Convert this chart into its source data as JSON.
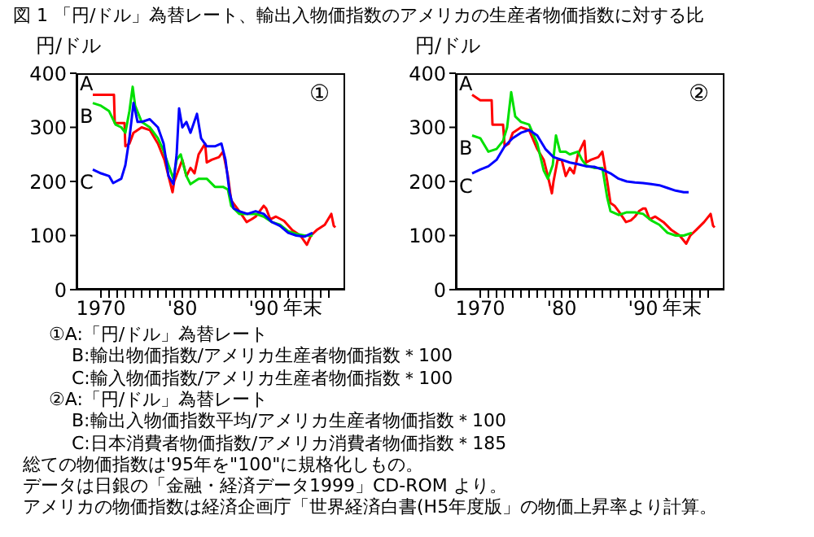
{
  "chart_data": [
    {
      "type": "line",
      "title": "図 1 「円/ドル」為替レート、輸出入物価指数のアメリカの生産者物価指数に対する比",
      "ylabel": "円/ドル",
      "xlabel": "年末",
      "marker": "none",
      "line_style": "solid",
      "xlim": [
        1967,
        2000
      ],
      "ylim": [
        0,
        400
      ],
      "yticks": [
        0,
        100,
        200,
        300,
        400
      ],
      "xticks": [
        {
          "value": 1970,
          "label": "1970"
        },
        {
          "value": 1971,
          "label": null
        },
        {
          "value": 1972,
          "label": null
        },
        {
          "value": 1973,
          "label": null
        },
        {
          "value": 1974,
          "label": null
        },
        {
          "value": 1975,
          "label": null
        },
        {
          "value": 1976,
          "label": null
        },
        {
          "value": 1977,
          "label": null
        },
        {
          "value": 1978,
          "label": null
        },
        {
          "value": 1979,
          "label": null
        },
        {
          "value": 1980,
          "label": "'80"
        },
        {
          "value": 1981,
          "label": null
        },
        {
          "value": 1982,
          "label": null
        },
        {
          "value": 1983,
          "label": null
        },
        {
          "value": 1984,
          "label": null
        },
        {
          "value": 1985,
          "label": null
        },
        {
          "value": 1986,
          "label": null
        },
        {
          "value": 1987,
          "label": null
        },
        {
          "value": 1988,
          "label": null
        },
        {
          "value": 1989,
          "label": null
        },
        {
          "value": 1990,
          "label": "'90"
        },
        {
          "value": 1991,
          "label": null
        },
        {
          "value": 1992,
          "label": null
        },
        {
          "value": 1993,
          "label": null
        },
        {
          "value": 1994,
          "label": null
        },
        {
          "value": 1995,
          "label": null
        },
        {
          "value": 1996,
          "label": null
        },
        {
          "value": 1997,
          "label": null
        },
        {
          "value": 1998,
          "label": null
        }
      ],
      "annotations": [
        "①",
        "①A:「円/ドル」為替レート",
        "B:輸出物価指数/アメリカ生産者物価指数＊100",
        "C:輸入物価指数/アメリカ生産者物価指数＊100"
      ],
      "series": [
        {
          "name": "A",
          "color": "#ff0000",
          "x": [
            1969,
            1971.6,
            1971.7,
            1972.9,
            1973.0,
            1973.5,
            1974.0,
            1975.0,
            1976.0,
            1977.0,
            1977.8,
            1978.3,
            1978.8,
            1979.0,
            1979.5,
            1980.0,
            1980.5,
            1981.0,
            1981.5,
            1982.0,
            1982.8,
            1983.0,
            1983.6,
            1984.5,
            1985.0,
            1985.6,
            1986.0,
            1986.5,
            1987.0,
            1987.9,
            1988.5,
            1989.0,
            1989.5,
            1990.0,
            1990.3,
            1990.8,
            1991.5,
            1992.5,
            1993.5,
            1994.5,
            1995.3,
            1995.8,
            1996.5,
            1997.5,
            1998.3,
            1998.6,
            1998.8
          ],
          "values": [
            360,
            360,
            308,
            308,
            265,
            270,
            290,
            300,
            295,
            270,
            240,
            210,
            180,
            200,
            220,
            240,
            210,
            225,
            215,
            250,
            270,
            235,
            240,
            245,
            255,
            210,
            165,
            155,
            145,
            125,
            130,
            135,
            145,
            155,
            150,
            130,
            135,
            127,
            110,
            100,
            83,
            100,
            110,
            120,
            140,
            118,
            115
          ]
        },
        {
          "name": "B",
          "color": "#00e000",
          "x": [
            1969,
            1970,
            1971,
            1971.8,
            1972.5,
            1973.0,
            1973.5,
            1973.9,
            1974.2,
            1975.0,
            1976.0,
            1977.0,
            1977.6,
            1978.3,
            1978.9,
            1979.3,
            1979.8,
            1980.5,
            1981.0,
            1982.0,
            1983.0,
            1984.0,
            1985.0,
            1985.6,
            1986.0,
            1987.0,
            1988.0,
            1989.0,
            1990.0,
            1991.0,
            1992.0,
            1993.0,
            1994.0,
            1995.0,
            1996.0
          ],
          "values": [
            345,
            340,
            330,
            305,
            300,
            290,
            330,
            375,
            340,
            310,
            300,
            280,
            260,
            230,
            205,
            240,
            250,
            210,
            195,
            205,
            205,
            190,
            190,
            185,
            155,
            140,
            140,
            140,
            135,
            125,
            120,
            108,
            103,
            100,
            100
          ]
        },
        {
          "name": "C",
          "color": "#0000ff",
          "x": [
            1969,
            1970,
            1971,
            1971.5,
            1972.5,
            1973.0,
            1973.5,
            1974.0,
            1974.5,
            1975.0,
            1976.0,
            1977.0,
            1977.7,
            1978.3,
            1978.9,
            1979.3,
            1979.6,
            1980.0,
            1980.5,
            1981.0,
            1981.8,
            1982.3,
            1983.0,
            1984.0,
            1984.8,
            1985.3,
            1985.8,
            1986.3,
            1987.0,
            1988.0,
            1989.0,
            1990.0,
            1991.0,
            1992.0,
            1993.0,
            1994.0,
            1995.0,
            1996.0
          ],
          "values": [
            222,
            215,
            210,
            197,
            205,
            230,
            280,
            345,
            310,
            310,
            315,
            300,
            270,
            210,
            195,
            250,
            335,
            300,
            310,
            290,
            325,
            280,
            265,
            265,
            270,
            240,
            180,
            150,
            145,
            140,
            145,
            140,
            125,
            118,
            105,
            100,
            98,
            105
          ]
        }
      ]
    },
    {
      "type": "line",
      "ylabel": "円/ドル",
      "xlabel": "年末",
      "marker": "none",
      "line_style": "solid",
      "xlim": [
        1967,
        2000
      ],
      "ylim": [
        0,
        400
      ],
      "yticks": [
        0,
        100,
        200,
        300,
        400
      ],
      "xticks": [
        {
          "value": 1970,
          "label": "1970"
        },
        {
          "value": 1971,
          "label": null
        },
        {
          "value": 1972,
          "label": null
        },
        {
          "value": 1973,
          "label": null
        },
        {
          "value": 1974,
          "label": null
        },
        {
          "value": 1975,
          "label": null
        },
        {
          "value": 1976,
          "label": null
        },
        {
          "value": 1977,
          "label": null
        },
        {
          "value": 1978,
          "label": null
        },
        {
          "value": 1979,
          "label": null
        },
        {
          "value": 1980,
          "label": "'80"
        },
        {
          "value": 1981,
          "label": null
        },
        {
          "value": 1982,
          "label": null
        },
        {
          "value": 1983,
          "label": null
        },
        {
          "value": 1984,
          "label": null
        },
        {
          "value": 1985,
          "label": null
        },
        {
          "value": 1986,
          "label": null
        },
        {
          "value": 1987,
          "label": null
        },
        {
          "value": 1988,
          "label": null
        },
        {
          "value": 1989,
          "label": null
        },
        {
          "value": 1990,
          "label": "'90"
        },
        {
          "value": 1991,
          "label": null
        },
        {
          "value": 1992,
          "label": null
        },
        {
          "value": 1993,
          "label": null
        },
        {
          "value": 1994,
          "label": null
        },
        {
          "value": 1995,
          "label": null
        },
        {
          "value": 1996,
          "label": null
        },
        {
          "value": 1997,
          "label": null
        },
        {
          "value": 1998,
          "label": null
        }
      ],
      "annotations": [
        "②",
        "②A:「円/ドル」為替レート",
        "B:輸出入物価指数平均/アメリカ生産者物価指数＊100",
        "C:日本消費者物価指数/アメリカ消費者物価指数＊185",
        "総ての物価指数は'95年を\"100\"に規格化しもの。",
        "データは日銀の「金融・経済データ1999」CD-ROM より。",
        "アメリカの物価指数は経済企画庁「世界経済白書(H5年度版」の物価上昇率より計算。"
      ],
      "series": [
        {
          "name": "A",
          "color": "#ff0000",
          "x": [
            1969,
            1970,
            1971.4,
            1971.5,
            1972.8,
            1973.0,
            1973.5,
            1974.0,
            1975.0,
            1976.0,
            1977.0,
            1977.8,
            1978.3,
            1978.8,
            1979.0,
            1979.5,
            1980.0,
            1980.5,
            1981.0,
            1981.5,
            1982.0,
            1982.8,
            1983.0,
            1983.6,
            1984.5,
            1985.0,
            1985.6,
            1986.0,
            1986.5,
            1987.0,
            1987.9,
            1988.5,
            1989.0,
            1989.5,
            1990.0,
            1990.3,
            1990.8,
            1991.5,
            1992.5,
            1993.5,
            1994.5,
            1995.3,
            1995.8,
            1996.5,
            1997.5,
            1998.3,
            1998.6,
            1998.8
          ],
          "values": [
            360,
            350,
            350,
            305,
            305,
            265,
            270,
            290,
            300,
            295,
            260,
            240,
            210,
            178,
            200,
            240,
            240,
            210,
            225,
            215,
            250,
            275,
            235,
            240,
            245,
            255,
            200,
            160,
            155,
            145,
            125,
            128,
            135,
            145,
            150,
            150,
            130,
            135,
            125,
            110,
            100,
            85,
            100,
            110,
            125,
            140,
            118,
            115
          ]
        },
        {
          "name": "B",
          "color": "#00e000",
          "x": [
            1969,
            1970,
            1971,
            1972,
            1972.8,
            1973.3,
            1973.8,
            1974.3,
            1975.0,
            1976.0,
            1977.0,
            1977.8,
            1978.3,
            1978.9,
            1979.3,
            1979.8,
            1980.5,
            1981.0,
            1982.0,
            1982.5,
            1983.0,
            1984.0,
            1985.0,
            1985.6,
            1986.0,
            1987.0,
            1988.0,
            1989.0,
            1990.0,
            1991.0,
            1992.0,
            1993.0,
            1994.0,
            1995.0,
            1996.0
          ],
          "values": [
            285,
            280,
            255,
            260,
            275,
            300,
            365,
            320,
            310,
            305,
            270,
            220,
            205,
            230,
            285,
            255,
            255,
            250,
            255,
            240,
            230,
            225,
            225,
            170,
            145,
            138,
            143,
            143,
            140,
            128,
            120,
            105,
            100,
            100,
            105
          ]
        },
        {
          "name": "C",
          "color": "#0000ff",
          "x": [
            1969,
            1970,
            1971,
            1972,
            1973,
            1974,
            1975,
            1976,
            1977,
            1978,
            1979,
            1980,
            1981,
            1982,
            1983,
            1984,
            1985,
            1986,
            1987,
            1988,
            1989,
            1990,
            1991,
            1992,
            1993,
            1994,
            1995,
            1995.6
          ],
          "values": [
            215,
            222,
            228,
            240,
            265,
            280,
            290,
            295,
            285,
            260,
            245,
            240,
            235,
            232,
            228,
            227,
            222,
            215,
            205,
            200,
            198,
            197,
            195,
            193,
            188,
            183,
            180,
            180
          ]
        }
      ]
    }
  ]
}
